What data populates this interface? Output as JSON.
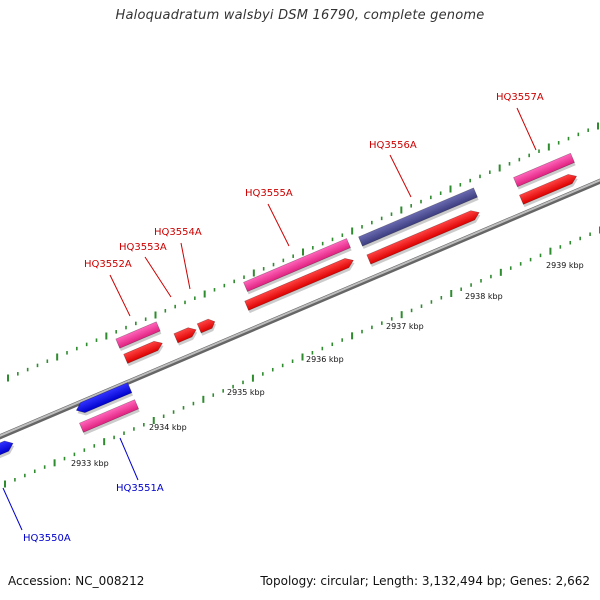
{
  "title": "Haloquadratum walsbyi DSM 16790, complete genome",
  "footer": {
    "accession": "Accession: NC_008212",
    "summary": "Topology: circular; Length: 3,132,494 bp; Genes: 2,662"
  },
  "colors": {
    "backbone": "#8c8c8c",
    "tick": "#2e8b2e",
    "gene_pink": "#ff3399",
    "cds_red": "#ff1111",
    "gene_blue": "#1a1aff",
    "gene_navy": "#4d4d99",
    "label_forward": "#cc0000",
    "label_reverse": "#0000cc"
  },
  "scale_labels": [
    "2933 kbp",
    "2934 kbp",
    "2935 kbp",
    "2936 kbp",
    "2937 kbp",
    "2938 kbp",
    "2939 kbp"
  ],
  "gene_labels": [
    {
      "name": "HQ3550A",
      "strand": "reverse"
    },
    {
      "name": "HQ3551A",
      "strand": "reverse"
    },
    {
      "name": "HQ3552A",
      "strand": "forward"
    },
    {
      "name": "HQ3553A",
      "strand": "forward"
    },
    {
      "name": "HQ3554A",
      "strand": "forward"
    },
    {
      "name": "HQ3555A",
      "strand": "forward"
    },
    {
      "name": "HQ3556A",
      "strand": "forward"
    },
    {
      "name": "HQ3557A",
      "strand": "forward"
    }
  ]
}
